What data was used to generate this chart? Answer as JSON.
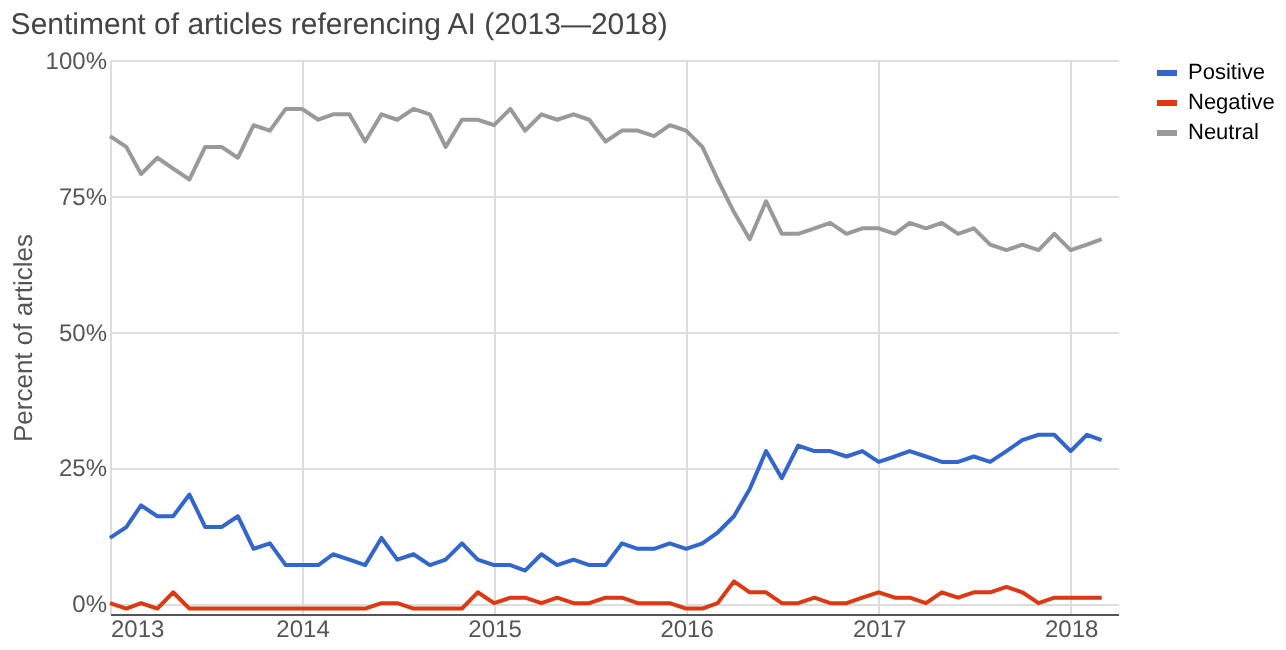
{
  "chart_data": {
    "type": "line",
    "title": "Sentiment of articles referencing AI (2013—2018)",
    "ylabel": "Percent of articles",
    "x": [
      "2013-01",
      "2013-02",
      "2013-03",
      "2013-04",
      "2013-05",
      "2013-06",
      "2013-07",
      "2013-08",
      "2013-09",
      "2013-10",
      "2013-11",
      "2013-12",
      "2014-01",
      "2014-02",
      "2014-03",
      "2014-04",
      "2014-05",
      "2014-06",
      "2014-07",
      "2014-08",
      "2014-09",
      "2014-10",
      "2014-11",
      "2014-12",
      "2015-01",
      "2015-02",
      "2015-03",
      "2015-04",
      "2015-05",
      "2015-06",
      "2015-07",
      "2015-08",
      "2015-09",
      "2015-10",
      "2015-11",
      "2015-12",
      "2016-01",
      "2016-02",
      "2016-03",
      "2016-04",
      "2016-05",
      "2016-06",
      "2016-07",
      "2016-08",
      "2016-09",
      "2016-10",
      "2016-11",
      "2016-12",
      "2017-01",
      "2017-02",
      "2017-03",
      "2017-04",
      "2017-05",
      "2017-06",
      "2017-07",
      "2017-08",
      "2017-09",
      "2017-10",
      "2017-11",
      "2017-12",
      "2018-01",
      "2018-02",
      "2018-03"
    ],
    "series": [
      {
        "name": "Positive",
        "color": "#3366cc",
        "values": [
          12,
          14,
          18,
          16,
          16,
          20,
          14,
          14,
          16,
          10,
          11,
          7,
          7,
          7,
          9,
          8,
          7,
          12,
          8,
          9,
          7,
          8,
          11,
          8,
          7,
          7,
          6,
          9,
          7,
          8,
          7,
          7,
          11,
          10,
          10,
          11,
          10,
          11,
          13,
          16,
          21,
          28,
          23,
          29,
          28,
          28,
          27,
          28,
          26,
          27,
          28,
          27,
          26,
          26,
          27,
          26,
          28,
          30,
          31,
          31,
          28,
          31,
          30
        ]
      },
      {
        "name": "Negative",
        "color": "#dc3912",
        "values": [
          0,
          -1,
          0,
          -1,
          2,
          -1,
          -1,
          -1,
          -1,
          -1,
          -1,
          -1,
          -1,
          -1,
          -1,
          -1,
          -1,
          0,
          0,
          -1,
          -1,
          -1,
          -1,
          2,
          0,
          1,
          1,
          0,
          1,
          0,
          0,
          1,
          1,
          0,
          0,
          0,
          -1,
          -1,
          0,
          4,
          2,
          2,
          0,
          0,
          1,
          0,
          0,
          1,
          2,
          1,
          1,
          0,
          2,
          1,
          2,
          2,
          3,
          2,
          0,
          1,
          1,
          1,
          1
        ]
      },
      {
        "name": "Neutral",
        "color": "#999999",
        "values": [
          86,
          84,
          79,
          82,
          80,
          78,
          84,
          84,
          82,
          88,
          87,
          91,
          91,
          89,
          90,
          90,
          85,
          90,
          89,
          91,
          90,
          84,
          89,
          89,
          88,
          91,
          87,
          90,
          89,
          90,
          89,
          85,
          87,
          87,
          86,
          88,
          87,
          84,
          78,
          72,
          67,
          74,
          68,
          68,
          69,
          70,
          68,
          69,
          69,
          68,
          70,
          69,
          70,
          68,
          69,
          66,
          65,
          66,
          65,
          68,
          65,
          66,
          67
        ]
      }
    ],
    "xlim": [
      "2013-01",
      "2018-04"
    ],
    "xticks": [
      {
        "value": "2013-01",
        "label": "2013"
      },
      {
        "value": "2014-01",
        "label": "2014"
      },
      {
        "value": "2015-01",
        "label": "2015"
      },
      {
        "value": "2016-01",
        "label": "2016"
      },
      {
        "value": "2017-01",
        "label": "2017"
      },
      {
        "value": "2018-01",
        "label": "2018"
      }
    ],
    "ylim": [
      -2,
      100
    ],
    "yticks": [
      {
        "value": 0,
        "label": "0%"
      },
      {
        "value": 25,
        "label": "25%"
      },
      {
        "value": 50,
        "label": "50%"
      },
      {
        "value": 75,
        "label": "75%"
      },
      {
        "value": 100,
        "label": "100%"
      }
    ],
    "grid": true,
    "legend": "top right",
    "marker": "none",
    "line_style": "solid"
  }
}
